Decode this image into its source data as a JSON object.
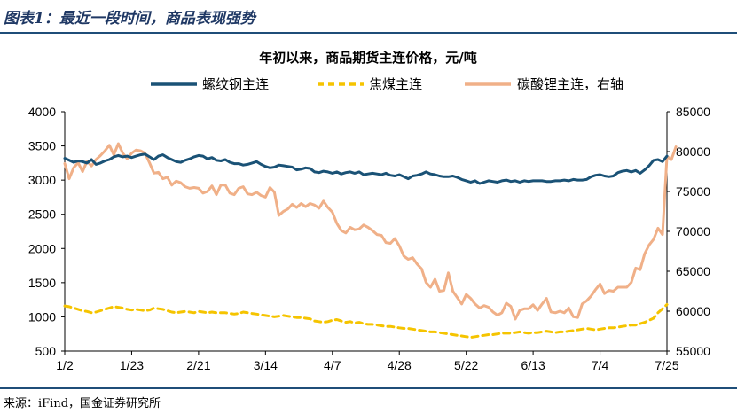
{
  "header": {
    "figure_title": "图表1：最近一段时间，商品表现强势"
  },
  "footer": {
    "source": "来源：iFind，国金证券研究所"
  },
  "colors": {
    "rebar": "#1a5276",
    "coke": "#f5c400",
    "lithium": "#f0b088",
    "rule": "#1f4e79"
  },
  "chart_data": {
    "type": "line",
    "title": "年初以来，商品期货主连价格，元/吨",
    "legend_position": "top",
    "x_tick_labels": [
      "1/2",
      "1/23",
      "2/21",
      "3/14",
      "4/7",
      "4/28",
      "5/22",
      "6/13",
      "7/4",
      "7/25"
    ],
    "x_tick_index": [
      0,
      15,
      30,
      45,
      60,
      75,
      90,
      105,
      120,
      135
    ],
    "left_axis": {
      "ylim": [
        500,
        4000
      ],
      "ticks": [
        500,
        1000,
        1500,
        2000,
        2500,
        3000,
        3500,
        4000
      ]
    },
    "right_axis": {
      "ylim": [
        55000,
        85000
      ],
      "ticks": [
        55000,
        60000,
        65000,
        70000,
        75000,
        80000,
        85000
      ]
    },
    "series": [
      {
        "name": "螺纹钢主连",
        "axis": "left",
        "style": "solid",
        "values": [
          3320,
          3290,
          3260,
          3280,
          3270,
          3250,
          3300,
          3230,
          3250,
          3280,
          3300,
          3340,
          3360,
          3340,
          3350,
          3330,
          3350,
          3370,
          3380,
          3340,
          3300,
          3350,
          3370,
          3330,
          3300,
          3270,
          3260,
          3290,
          3310,
          3340,
          3360,
          3350,
          3310,
          3330,
          3290,
          3280,
          3300,
          3260,
          3240,
          3240,
          3220,
          3230,
          3250,
          3270,
          3230,
          3200,
          3180,
          3190,
          3220,
          3210,
          3200,
          3190,
          3150,
          3160,
          3180,
          3170,
          3120,
          3110,
          3130,
          3120,
          3100,
          3120,
          3090,
          3110,
          3120,
          3100,
          3120,
          3080,
          3090,
          3100,
          3090,
          3080,
          3100,
          3070,
          3060,
          3080,
          3050,
          3020,
          3060,
          3070,
          3090,
          3120,
          3090,
          3080,
          3060,
          3050,
          3050,
          3060,
          3040,
          3010,
          2990,
          2970,
          2990,
          2950,
          2970,
          2990,
          2980,
          2970,
          2990,
          3000,
          2980,
          2990,
          2970,
          2990,
          2980,
          2990,
          2990,
          2990,
          2980,
          2980,
          2990,
          2990,
          3000,
          2990,
          3010,
          3000,
          3000,
          3010,
          3050,
          3070,
          3080,
          3060,
          3050,
          3060,
          3110,
          3130,
          3140,
          3120,
          3140,
          3100,
          3150,
          3210,
          3290,
          3300,
          3270,
          3350
        ]
      },
      {
        "name": "焦煤主连",
        "axis": "left",
        "style": "dashed",
        "values": [
          1160,
          1150,
          1130,
          1110,
          1090,
          1080,
          1060,
          1070,
          1090,
          1110,
          1130,
          1150,
          1140,
          1130,
          1110,
          1100,
          1110,
          1100,
          1090,
          1100,
          1130,
          1120,
          1110,
          1090,
          1070,
          1060,
          1070,
          1080,
          1070,
          1060,
          1080,
          1070,
          1060,
          1070,
          1060,
          1060,
          1060,
          1050,
          1040,
          1050,
          1070,
          1060,
          1050,
          1040,
          1030,
          1020,
          1010,
          1000,
          1010,
          1020,
          1010,
          1000,
          990,
          990,
          980,
          970,
          940,
          930,
          920,
          930,
          950,
          960,
          940,
          920,
          930,
          910,
          920,
          900,
          890,
          890,
          880,
          870,
          860,
          860,
          850,
          840,
          830,
          830,
          820,
          810,
          800,
          790,
          780,
          780,
          770,
          760,
          750,
          740,
          730,
          720,
          710,
          700,
          710,
          720,
          730,
          740,
          740,
          750,
          760,
          760,
          760,
          770,
          780,
          770,
          760,
          770,
          770,
          780,
          790,
          780,
          770,
          780,
          780,
          790,
          800,
          810,
          820,
          830,
          820,
          810,
          820,
          830,
          840,
          840,
          850,
          860,
          870,
          880,
          880,
          900,
          920,
          950,
          980,
          1060,
          1120,
          1180
        ]
      },
      {
        "name": "碳酸锂主连，右轴",
        "axis": "right",
        "style": "solid",
        "values": [
          78500,
          76600,
          78000,
          78600,
          77500,
          78800,
          78200,
          79000,
          79500,
          80100,
          80800,
          79600,
          81000,
          79800,
          79100,
          79800,
          80200,
          80100,
          79800,
          78600,
          77300,
          77400,
          76600,
          76800,
          75800,
          76300,
          76100,
          75600,
          75400,
          75500,
          75400,
          74800,
          75000,
          75700,
          74600,
          75800,
          75800,
          74800,
          74600,
          75400,
          75600,
          74700,
          74600,
          74900,
          74500,
          74300,
          75500,
          74900,
          72000,
          72500,
          72800,
          73400,
          73000,
          73500,
          73100,
          73500,
          73300,
          72900,
          73800,
          73000,
          72400,
          71000,
          70100,
          69800,
          70500,
          70200,
          70300,
          70800,
          70500,
          70100,
          69600,
          69500,
          68600,
          68500,
          69100,
          68200,
          66900,
          66500,
          66700,
          65900,
          65300,
          63600,
          63000,
          64000,
          62500,
          62600,
          64800,
          62500,
          61700,
          60900,
          62100,
          61600,
          60900,
          60400,
          60700,
          60500,
          59900,
          59500,
          59800,
          61000,
          60600,
          59000,
          60100,
          60300,
          60300,
          60800,
          60100,
          60900,
          61600,
          59900,
          59800,
          60000,
          59800,
          60400,
          59300,
          59200,
          60900,
          61300,
          61900,
          62700,
          63400,
          62200,
          62600,
          62500,
          63000,
          63000,
          63000,
          63600,
          65400,
          65200,
          67200,
          68300,
          69000,
          70400,
          69600,
          79400,
          79000,
          80600
        ]
      }
    ]
  }
}
